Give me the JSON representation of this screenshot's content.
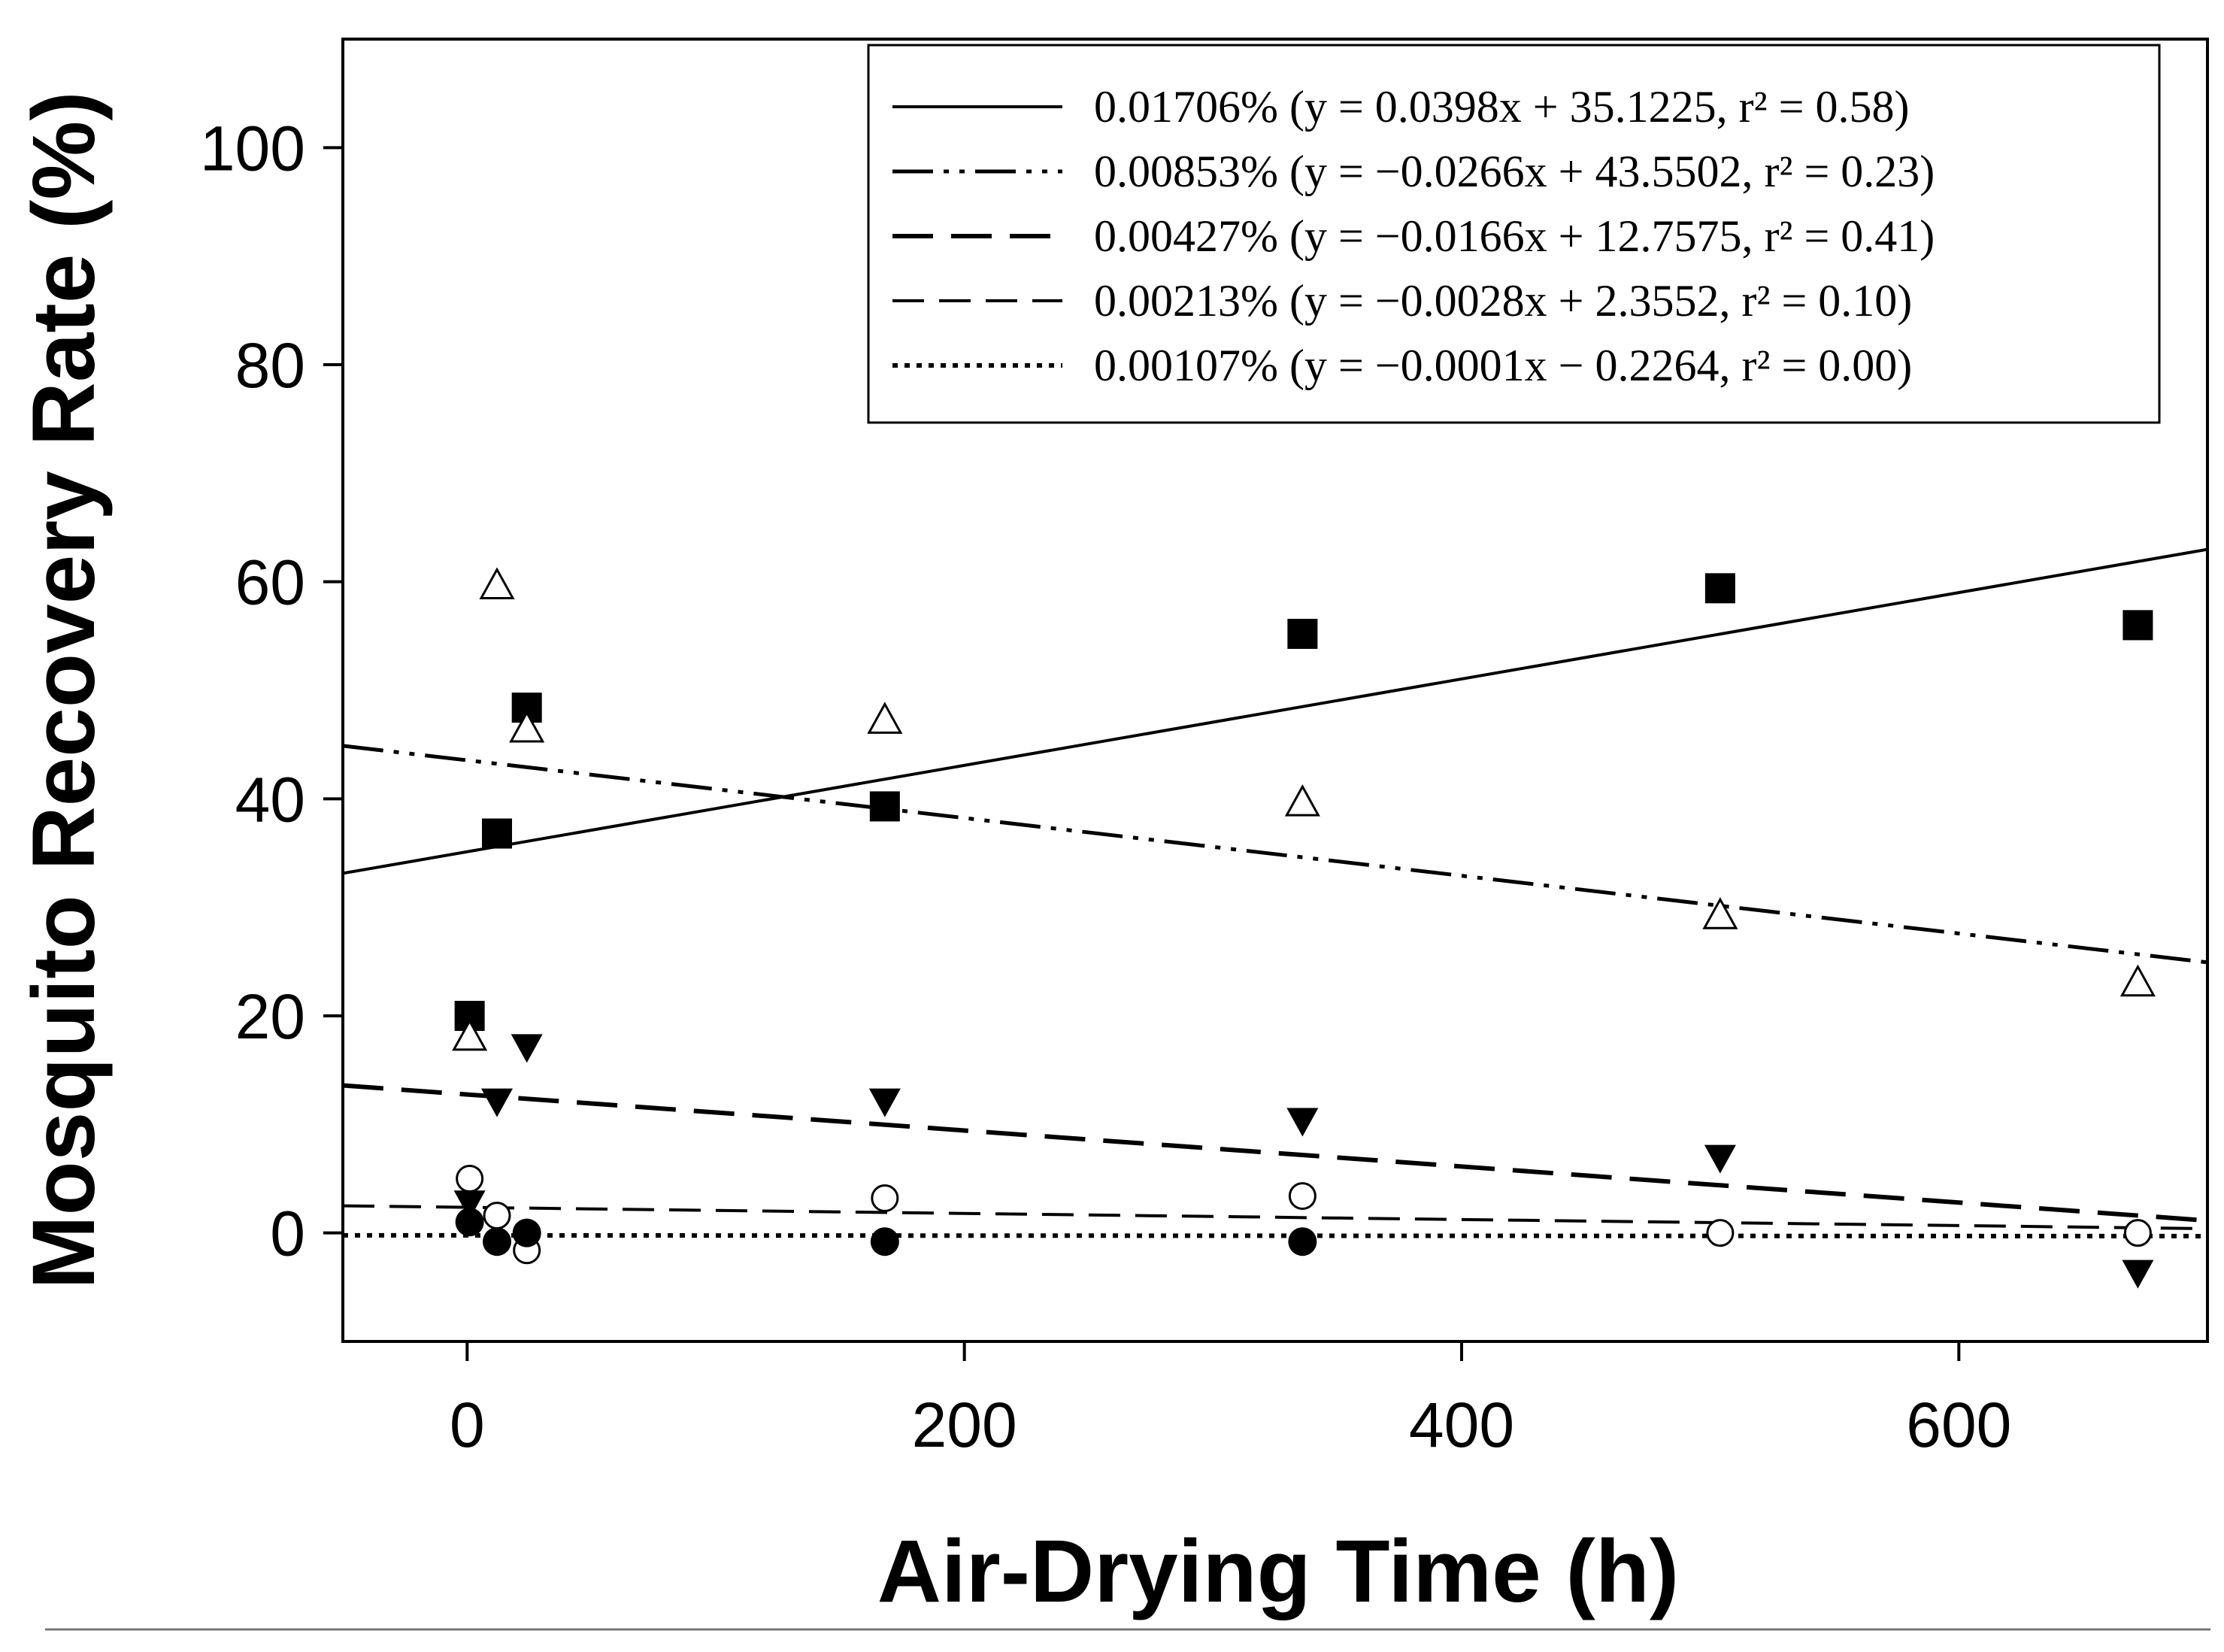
{
  "chart_data": {
    "type": "scatter",
    "title": "",
    "xlabel": "Air-Drying Time (h)",
    "ylabel": "Mosquito Recovery Rate (%)",
    "xlim": [
      -50,
      700
    ],
    "ylim": [
      -10,
      110
    ],
    "xticks": [
      0,
      200,
      400,
      600
    ],
    "yticks": [
      0,
      20,
      40,
      60,
      80,
      100
    ],
    "legend_position": "top-right",
    "series": [
      {
        "name": "0.01706%",
        "marker": "filled-square",
        "line_style": "solid",
        "legend_label": "0.01706% (y =  0.0398x + 35.1225, r² = 0.58)",
        "slope": 0.0398,
        "intercept": 35.1225,
        "points": [
          [
            1,
            20.0
          ],
          [
            12,
            36.8
          ],
          [
            24,
            48.4
          ],
          [
            168,
            39.3
          ],
          [
            336,
            55.2
          ],
          [
            504,
            59.4
          ],
          [
            672,
            56.0
          ]
        ]
      },
      {
        "name": "0.00853%",
        "marker": "open-triangle-up",
        "line_style": "dash-dot-dot",
        "legend_label": "0.00853% (y = −0.0266x + 43.5502, r² = 0.23)",
        "slope": -0.0266,
        "intercept": 43.5502,
        "points": [
          [
            1,
            18.0
          ],
          [
            12,
            59.6
          ],
          [
            24,
            46.4
          ],
          [
            168,
            47.2
          ],
          [
            336,
            39.6
          ],
          [
            504,
            29.2
          ],
          [
            672,
            23.0
          ]
        ]
      },
      {
        "name": "0.00427%",
        "marker": "filled-triangle-down",
        "line_style": "long-dash",
        "legend_label": "0.00427% (y = −0.0166x + 12.7575, r² = 0.41)",
        "slope": -0.0166,
        "intercept": 12.7575,
        "points": [
          [
            1,
            2.8
          ],
          [
            12,
            12.2
          ],
          [
            24,
            17.2
          ],
          [
            168,
            12.2
          ],
          [
            336,
            10.4
          ],
          [
            504,
            7.0
          ],
          [
            672,
            -3.6
          ]
        ]
      },
      {
        "name": "0.00213%",
        "marker": "open-circle",
        "line_style": "dash",
        "legend_label": "0.00213% (y = −0.0028x + 2.3552, r² = 0.10)",
        "slope": -0.0028,
        "intercept": 2.3552,
        "points": [
          [
            1,
            5.0
          ],
          [
            12,
            1.6
          ],
          [
            24,
            -1.6
          ],
          [
            168,
            3.2
          ],
          [
            336,
            3.4
          ],
          [
            504,
            0.0
          ],
          [
            672,
            0.0
          ]
        ]
      },
      {
        "name": "0.00107%",
        "marker": "filled-circle",
        "line_style": "dotted",
        "legend_label": "0.00107% (y = −0.0001x − 0.2264, r² = 0.00)",
        "slope": -0.0001,
        "intercept": -0.2264,
        "points": [
          [
            1,
            1.0
          ],
          [
            12,
            -0.8
          ],
          [
            24,
            0.0
          ],
          [
            168,
            -0.8
          ],
          [
            336,
            -0.8
          ]
        ]
      }
    ]
  }
}
